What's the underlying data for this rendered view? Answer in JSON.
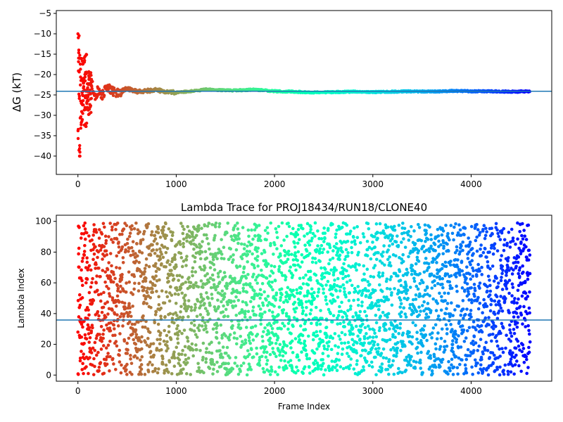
{
  "chart_data": [
    {
      "type": "scatter",
      "title": "",
      "xlabel": "",
      "ylabel": "ΔG (kT)",
      "xlim": [
        -220,
        4820
      ],
      "ylim": [
        -44.5,
        -4.3
      ],
      "xticks": [
        0,
        1000,
        2000,
        3000,
        4000
      ],
      "yticks": [
        -40,
        -35,
        -30,
        -25,
        -20,
        -15,
        -10,
        -5
      ],
      "hline": -24.1,
      "colormap": "rainbow (reversed, frame index)",
      "frames": 4600,
      "series": [
        {
          "x": [
            0,
            10,
            20,
            30,
            40,
            50,
            60,
            70,
            80,
            90,
            100,
            120,
            140,
            160,
            180,
            200,
            250,
            300,
            350,
            400,
            500,
            600,
            700,
            800,
            900,
            1000,
            1200,
            1300,
            1400,
            1600,
            1800,
            2000,
            2200,
            2400,
            2600,
            2800,
            3000,
            3200,
            3400,
            3600,
            3800,
            4000,
            4200,
            4400,
            4600
          ],
          "y": [
            -10,
            -30,
            -20,
            -33,
            -16,
            -22,
            -28,
            -18,
            -26,
            -21,
            -23,
            -27,
            -22,
            -24,
            -26,
            -24,
            -25,
            -23,
            -24,
            -24.5,
            -23.5,
            -24.2,
            -24,
            -23.8,
            -24.3,
            -24.4,
            -24,
            -23.6,
            -23.8,
            -23.9,
            -23.7,
            -24.1,
            -24.2,
            -24.4,
            -24.3,
            -24.2,
            -24.3,
            -24.2,
            -24.1,
            -24.2,
            -24.0,
            -24.1,
            -24.1,
            -24.2,
            -24.1
          ]
        }
      ]
    },
    {
      "type": "scatter",
      "title": "Lambda Trace for PROJ18434/RUN18/CLONE40",
      "xlabel": "Frame Index",
      "ylabel": "Lambda Index",
      "xlim": [
        -220,
        4820
      ],
      "ylim": [
        -4,
        104
      ],
      "xticks": [
        0,
        1000,
        2000,
        3000,
        4000
      ],
      "yticks": [
        0,
        20,
        40,
        60,
        80,
        100
      ],
      "hline": 35.8,
      "colormap": "rainbow (reversed, frame index)",
      "frames": 4600,
      "y_range": [
        0,
        99
      ]
    }
  ]
}
